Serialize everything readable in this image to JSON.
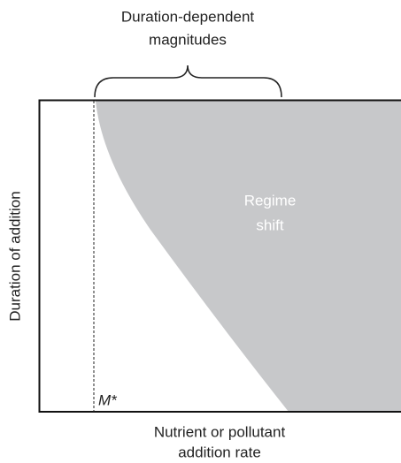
{
  "header": {
    "title_lines": [
      "Duration-dependent",
      "magnitudes"
    ]
  },
  "region": {
    "label_lines": [
      "Regime",
      "shift"
    ]
  },
  "axes": {
    "y_label": "Duration of addition",
    "x_label_lines": [
      "Nutrient or pollutant",
      "addition rate"
    ]
  },
  "threshold": {
    "label": "M*"
  }
}
